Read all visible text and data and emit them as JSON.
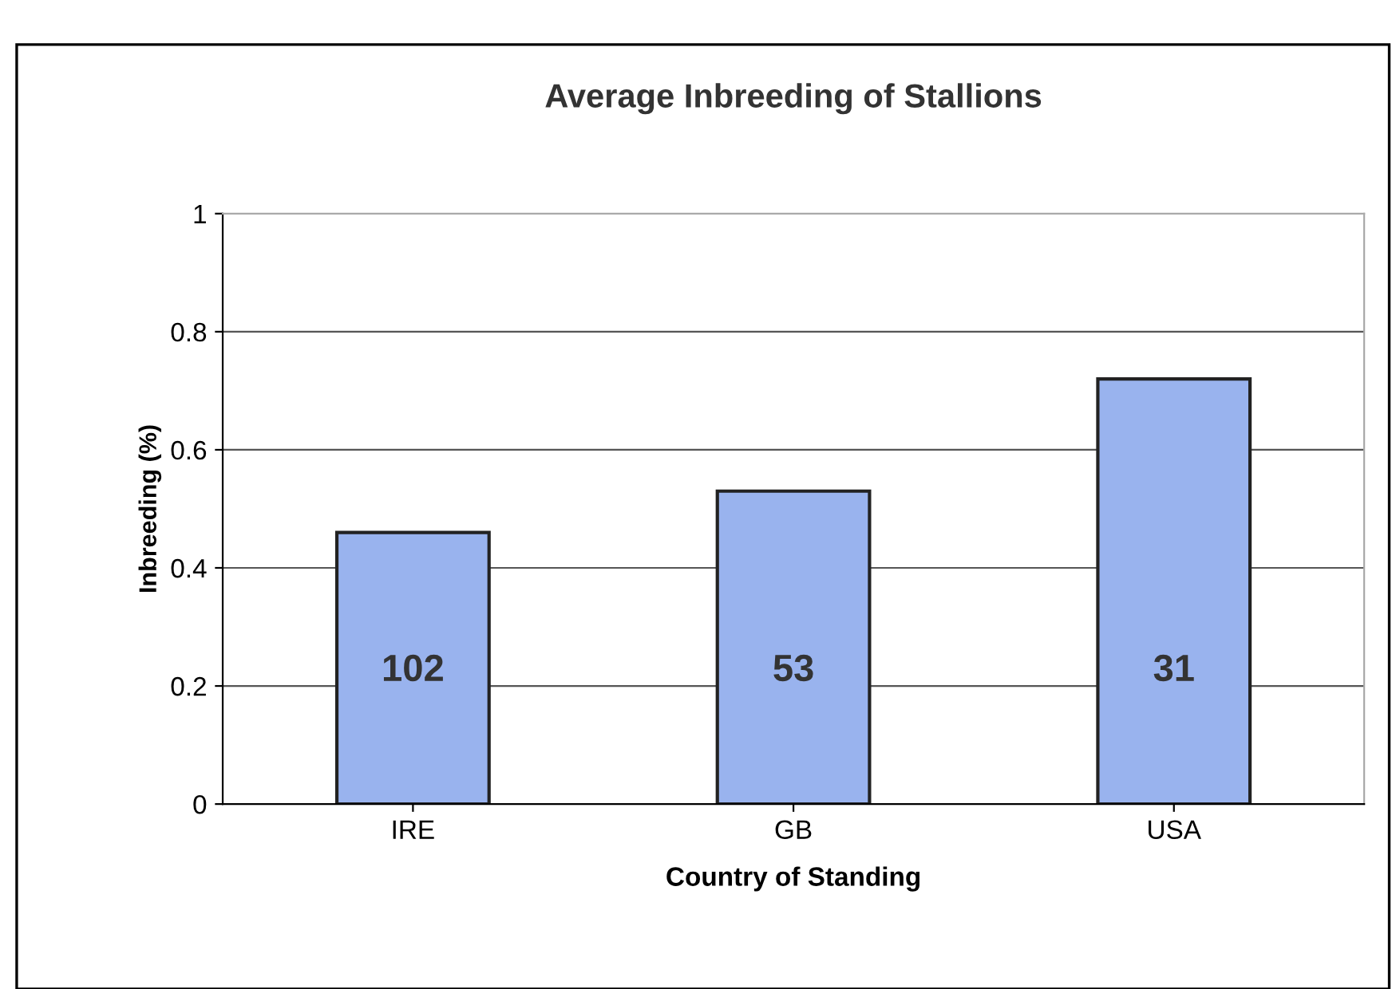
{
  "chart_data": {
    "type": "bar",
    "title": "Average Inbreeding of Stallions",
    "xlabel": "Country of Standing",
    "ylabel": "Inbreeding (%)",
    "categories": [
      "IRE",
      "GB",
      "USA"
    ],
    "values": [
      0.46,
      0.53,
      0.72
    ],
    "color": "#99b3ee",
    "ylim": [
      0,
      1
    ],
    "yticks": [
      0,
      0.2,
      0.4,
      0.6,
      0.8,
      1
    ],
    "grid": "y",
    "annotations": [
      "102",
      "53",
      "31"
    ]
  }
}
